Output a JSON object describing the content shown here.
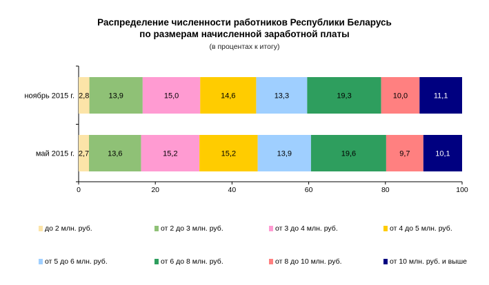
{
  "title_line1": "Распределение численности работников Республики Беларусь",
  "title_line2": "по размерам начисленной заработной платы",
  "subtitle": "(в процентах к итогу)",
  "chart_data": {
    "type": "bar",
    "orientation": "horizontal",
    "stacked": true,
    "categories": [
      "ноябрь 2015 г.",
      "май 2015 г."
    ],
    "series": [
      {
        "name": "до 2 млн. руб.",
        "color": "#FCE4A8",
        "values": [
          2.8,
          2.7
        ]
      },
      {
        "name": "от 2 до 3 млн. руб.",
        "color": "#8FC176",
        "values": [
          13.9,
          13.6
        ]
      },
      {
        "name": "от 3 до 4 млн. руб.",
        "color": "#FF9BD2",
        "values": [
          15.0,
          15.2
        ]
      },
      {
        "name": "от 4 до 5 млн. руб.",
        "color": "#FFCC00",
        "values": [
          14.6,
          15.2
        ]
      },
      {
        "name": "от 5 до 6 млн. руб.",
        "color": "#9FCFFF",
        "values": [
          13.3,
          13.9
        ]
      },
      {
        "name": "от 6 до 8 млн. руб.",
        "color": "#2E9E5E",
        "values": [
          19.3,
          19.6
        ]
      },
      {
        "name": "от 8 до 10 млн. руб.",
        "color": "#FF8080",
        "values": [
          10.0,
          9.7
        ]
      },
      {
        "name": "от 10 млн. руб. и выше",
        "color": "#000080",
        "values": [
          11.1,
          10.1
        ]
      }
    ],
    "value_labels": [
      [
        "2,8",
        "13,9",
        "15,0",
        "14,6",
        "13,3",
        "19,3",
        "10,0",
        "11,1"
      ],
      [
        "2,7",
        "13,6",
        "15,2",
        "15,2",
        "13,9",
        "19,6",
        "9,7",
        "10,1"
      ]
    ],
    "xlim": [
      0,
      100
    ],
    "xticks": [
      0,
      20,
      40,
      60,
      80,
      100
    ],
    "grid": false,
    "legend_position": "bottom"
  }
}
